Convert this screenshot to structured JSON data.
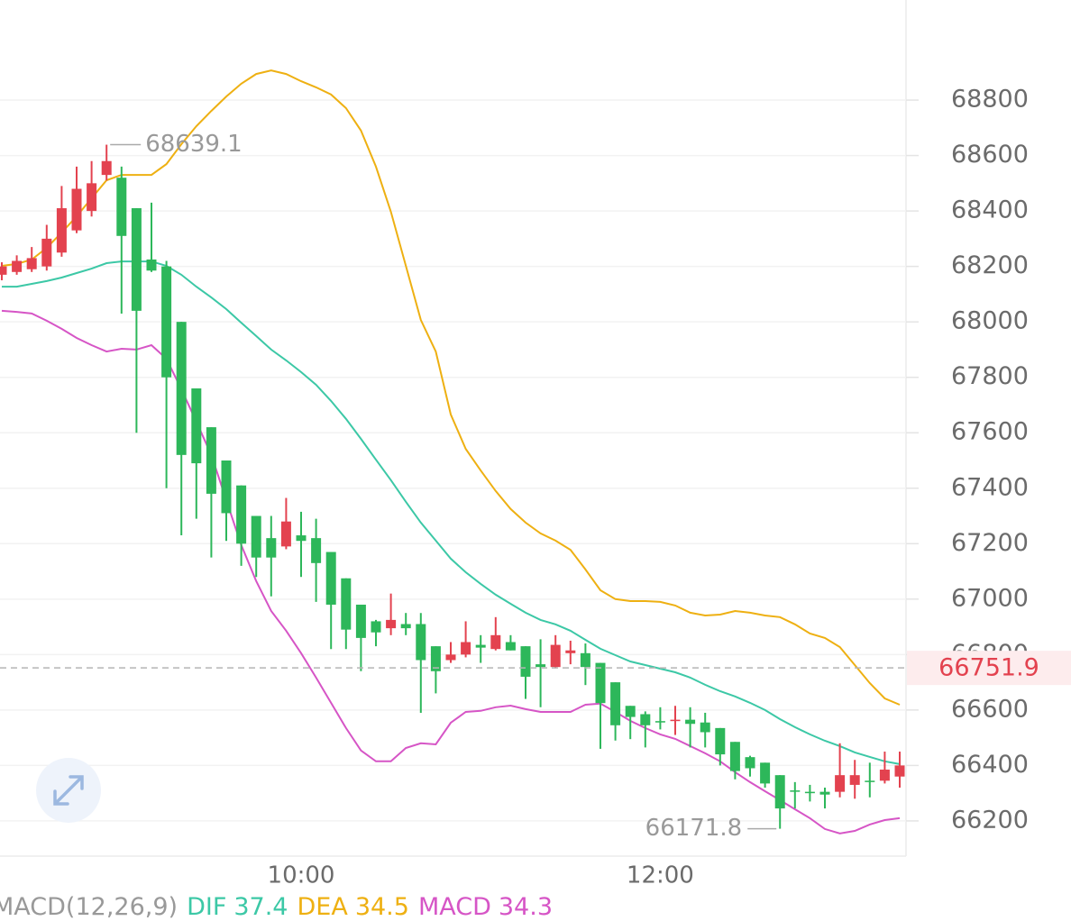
{
  "chart_data": {
    "type": "candlestick",
    "categories": [
      null,
      null,
      null,
      null,
      null,
      null,
      null,
      null,
      null,
      null,
      null,
      null,
      null,
      null,
      null,
      null,
      null,
      null,
      null,
      null,
      "10:00",
      null,
      null,
      null,
      null,
      null,
      null,
      null,
      null,
      null,
      null,
      null,
      null,
      null,
      null,
      null,
      null,
      null,
      null,
      null,
      null,
      null,
      null,
      null,
      "12:00",
      null,
      null,
      null,
      null,
      null,
      null,
      null,
      null,
      null,
      null,
      null,
      null,
      null,
      null,
      null,
      null
    ],
    "open": [
      68170,
      68180,
      68190,
      68200,
      68250,
      68330,
      68400,
      68530,
      68520,
      68410,
      68225,
      68200,
      68000,
      67760,
      67620,
      67500,
      67410,
      67300,
      67220,
      67190,
      67230,
      67220,
      67170,
      67075,
      66980,
      66920,
      66895,
      66910,
      66910,
      66830,
      66780,
      66800,
      66835,
      66820,
      66845,
      66830,
      66765,
      66755,
      66805,
      66805,
      66770,
      66700,
      66615,
      66585,
      66560,
      66560,
      66565,
      66555,
      66535,
      66485,
      66430,
      66410,
      66365,
      66310,
      66305,
      66305,
      66305,
      66330,
      66345,
      66345,
      66360
    ],
    "high": [
      68215,
      68240,
      68270,
      68350,
      68490,
      68560,
      68580,
      68639.1,
      68560,
      68410,
      68430,
      68220,
      68000,
      67760,
      67620,
      67500,
      67410,
      67300,
      67300,
      67365,
      67315,
      67290,
      67170,
      67075,
      66980,
      66925,
      67020,
      66950,
      66950,
      66830,
      66845,
      66920,
      66870,
      66935,
      66870,
      66830,
      66855,
      66870,
      66850,
      66840,
      66770,
      66700,
      66615,
      66595,
      66610,
      66615,
      66610,
      66590,
      66535,
      66485,
      66435,
      66410,
      66365,
      66340,
      66330,
      66320,
      66480,
      66420,
      66410,
      66450,
      66450
    ],
    "low": [
      68150,
      68170,
      68180,
      68185,
      68235,
      68320,
      68380,
      68510,
      68030,
      67600,
      68180,
      67400,
      67230,
      67290,
      67150,
      67210,
      67120,
      67080,
      67010,
      67180,
      67080,
      66990,
      66820,
      66820,
      66740,
      66830,
      66870,
      66870,
      66590,
      66660,
      66770,
      66790,
      66770,
      66815,
      66815,
      66640,
      66610,
      66750,
      66765,
      66690,
      66460,
      66490,
      66495,
      66465,
      66530,
      66510,
      66465,
      66465,
      66400,
      66350,
      66360,
      66320,
      66171.8,
      66245,
      66270,
      66245,
      66285,
      66280,
      66285,
      66335,
      66320
    ],
    "close": [
      68200,
      68220,
      68230,
      68300,
      68410,
      68480,
      68500,
      68580,
      68310,
      68040,
      68185,
      67800,
      67520,
      67490,
      67380,
      67310,
      67200,
      67150,
      67150,
      67280,
      67210,
      67130,
      66980,
      66890,
      66860,
      66880,
      66925,
      66895,
      66780,
      66740,
      66800,
      66845,
      66825,
      66870,
      66815,
      66720,
      66755,
      66835,
      66815,
      66755,
      66625,
      66545,
      66575,
      66545,
      66555,
      66565,
      66550,
      66520,
      66440,
      66380,
      66390,
      66335,
      66245,
      66305,
      66300,
      66295,
      66365,
      66365,
      66340,
      66385,
      66400
    ],
    "up_color": "#e3424f",
    "down_color": "#2db75a",
    "bands": [
      {
        "color": "#eeb012",
        "values": [
          68202,
          68209,
          68225,
          68267,
          68322,
          68381,
          68446,
          68511,
          68530,
          68530,
          68530,
          68569,
          68641,
          68706,
          68761,
          68813,
          68859,
          68894,
          68907,
          68894,
          68868,
          68846,
          68820,
          68771,
          68690,
          68560,
          68397,
          68202,
          68007,
          67893,
          67666,
          67542,
          67464,
          67390,
          67325,
          67276,
          67237,
          67211,
          67178,
          67107,
          67032,
          67000,
          66993,
          66993,
          66990,
          66977,
          66951,
          66941,
          66944,
          66957,
          66951,
          66941,
          66935,
          66909,
          66876,
          66860,
          66827,
          66762,
          66697,
          66642,
          66619
        ]
      },
      {
        "color": "#3cc8a6",
        "values": [
          68127,
          68127,
          68137,
          68147,
          68160,
          68176,
          68192,
          68212,
          68218,
          68218,
          68218,
          68202,
          68170,
          68127,
          68088,
          68046,
          67997,
          67949,
          67900,
          67861,
          67819,
          67773,
          67715,
          67650,
          67578,
          67503,
          67429,
          67351,
          67276,
          67211,
          67146,
          67097,
          67055,
          67016,
          66983,
          66951,
          66925,
          66909,
          66886,
          66853,
          66821,
          66798,
          66775,
          66762,
          66749,
          66736,
          66717,
          66691,
          66668,
          66649,
          66626,
          66600,
          66567,
          66538,
          66512,
          66489,
          66470,
          66447,
          66431,
          66415,
          66405
        ]
      },
      {
        "color": "#d655c6",
        "values": [
          68040,
          68036,
          68030,
          68004,
          67975,
          67942,
          67916,
          67893,
          67903,
          67900,
          67916,
          67867,
          67757,
          67640,
          67520,
          67357,
          67195,
          67065,
          66957,
          66886,
          66805,
          66717,
          66626,
          66535,
          66454,
          66415,
          66415,
          66463,
          66480,
          66476,
          66554,
          66593,
          66597,
          66610,
          66616,
          66603,
          66593,
          66593,
          66593,
          66619,
          66623,
          66593,
          66561,
          66535,
          66512,
          66496,
          66470,
          66444,
          66415,
          66376,
          66340,
          66307,
          66275,
          66242,
          66210,
          66171,
          66155,
          66164,
          66187,
          66203,
          66210
        ]
      }
    ],
    "ylim": [
      66073,
      69161
    ],
    "yticks": [
      66200,
      66400,
      66600,
      66800,
      67000,
      67200,
      67400,
      67600,
      67800,
      68000,
      68200,
      68400,
      68600,
      68800
    ],
    "grid": true,
    "current_price": 66751.9,
    "indicator": {
      "name": "MACD(12,26,9)",
      "dif_label": "DIF",
      "dif": 37.4,
      "dea_label": "DEA",
      "dea": 34.5,
      "macd_label": "MACD",
      "macd": 34.3
    }
  }
}
